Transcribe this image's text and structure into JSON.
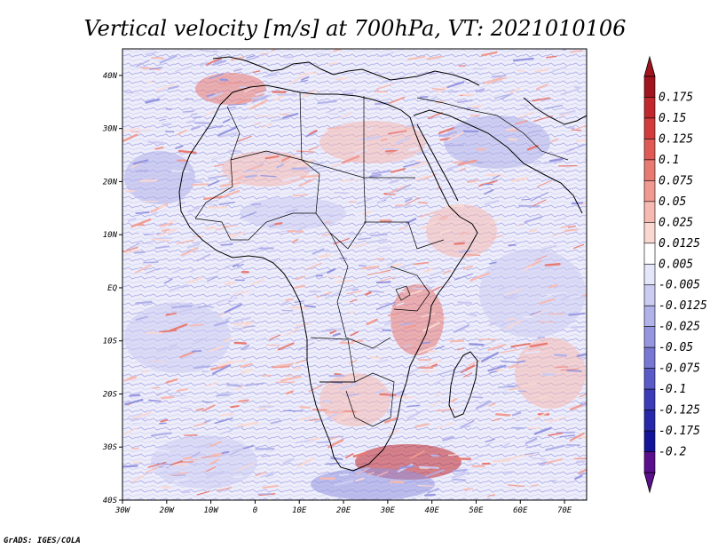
{
  "title": "Vertical velocity [m/s] at 700hPa, VT: 2021010106",
  "credit": "GrADS: IGES/COLA",
  "map": {
    "lon_range": [
      -30,
      75
    ],
    "lat_range": [
      -40,
      45
    ],
    "lon_ticks": [
      "30W",
      "20W",
      "10W",
      "0",
      "10E",
      "20E",
      "30E",
      "40E",
      "50E",
      "60E",
      "70E"
    ],
    "lat_ticks": [
      "40N",
      "30N",
      "20N",
      "10N",
      "EQ",
      "10S",
      "20S",
      "30S",
      "40S"
    ]
  },
  "colorbar": {
    "labels": [
      "0.175",
      "0.15",
      "0.125",
      "0.1",
      "0.075",
      "0.05",
      "0.025",
      "0.0125",
      "0.005",
      "-0.005",
      "-0.0125",
      "-0.025",
      "-0.05",
      "-0.075",
      "-0.1",
      "-0.125",
      "-0.175",
      "-0.2"
    ],
    "colors": [
      "#a0141e",
      "#c0282d",
      "#d23c3c",
      "#e05a55",
      "#e87a72",
      "#f09a90",
      "#f6bab2",
      "#fad8d2",
      "#ffffff",
      "#e6e6fa",
      "#ccccf2",
      "#b2b2ea",
      "#9696e0",
      "#7878d4",
      "#5a5ac8",
      "#3c3cb9",
      "#2828aa",
      "#14149a",
      "#5a0f8c"
    ],
    "top_arrow_color": "#a0141e",
    "bottom_arrow_color": "#5a0f8c"
  }
}
